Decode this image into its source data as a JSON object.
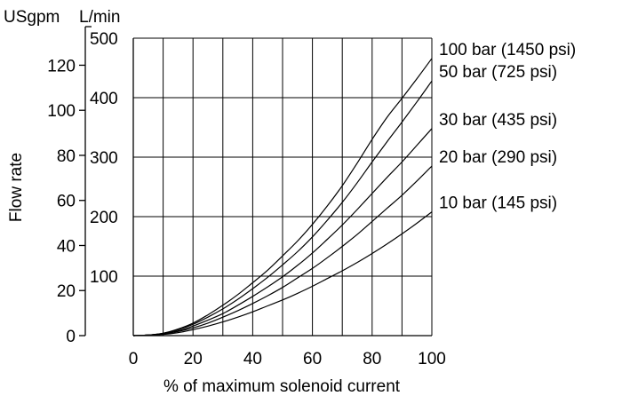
{
  "chart_data": {
    "type": "line",
    "xlabel": "% of maximum solenoid current",
    "ylabel": "Flow rate",
    "unit_left": "USgpm",
    "unit_right": "L/min",
    "xlim": [
      0,
      100
    ],
    "ylim_lpm": [
      0,
      500
    ],
    "ylim_usgpm": [
      0,
      132
    ],
    "x_ticks": [
      0,
      20,
      40,
      60,
      80,
      100
    ],
    "y_ticks_lpm": [
      100,
      200,
      300,
      400,
      500
    ],
    "y_ticks_usgpm": [
      0,
      20,
      40,
      60,
      80,
      100,
      120
    ],
    "grid": true,
    "x": [
      0,
      5,
      10,
      15,
      20,
      25,
      30,
      35,
      40,
      45,
      50,
      55,
      60,
      65,
      70,
      75,
      80,
      85,
      90,
      95,
      100
    ],
    "series": [
      {
        "name": "100 bar (1450 psi)",
        "values": [
          0,
          1,
          4,
          11,
          21,
          35,
          51,
          69,
          89,
          110,
          134,
          159,
          187,
          218,
          252,
          290,
          330,
          367,
          399,
          432,
          466
        ]
      },
      {
        "name": "50 bar (725 psi)",
        "values": [
          0,
          1,
          4,
          10,
          19,
          31,
          45,
          61,
          79,
          98,
          119,
          141,
          166,
          194,
          224,
          257,
          292,
          326,
          359,
          393,
          428
        ]
      },
      {
        "name": "30 bar (435 psi)",
        "values": [
          0,
          1,
          3,
          8,
          16,
          26,
          37,
          51,
          66,
          82,
          99,
          118,
          139,
          162,
          186,
          212,
          239,
          266,
          292,
          320,
          348
        ]
      },
      {
        "name": "20 bar (290 psi)",
        "values": [
          0,
          1,
          3,
          7,
          13,
          21,
          31,
          42,
          54,
          67,
          81,
          97,
          113,
          131,
          150,
          170,
          192,
          214,
          236,
          260,
          285
        ]
      },
      {
        "name": "10 bar (145 psi)",
        "values": [
          0,
          1,
          2,
          5,
          10,
          16,
          23,
          31,
          40,
          50,
          60,
          71,
          83,
          96,
          109,
          123,
          138,
          154,
          171,
          189,
          208
        ]
      }
    ]
  }
}
